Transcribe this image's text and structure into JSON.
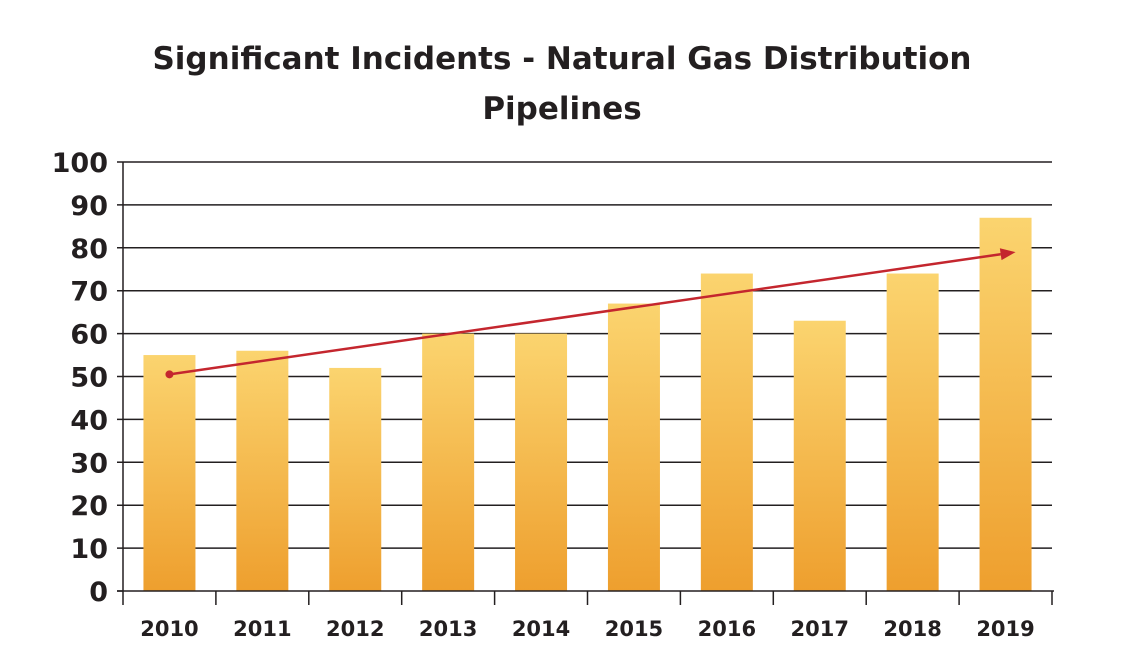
{
  "chart_data": {
    "type": "bar",
    "title_lines": [
      "Significant Incidents - Natural Gas Distribution",
      "Pipelines"
    ],
    "categories": [
      "2010",
      "2011",
      "2012",
      "2013",
      "2014",
      "2015",
      "2016",
      "2017",
      "2018",
      "2019"
    ],
    "values": [
      55,
      56,
      52,
      60,
      60,
      67,
      74,
      63,
      74,
      87
    ],
    "ylim": [
      0,
      100
    ],
    "yticks": [
      0,
      10,
      20,
      30,
      40,
      50,
      60,
      70,
      80,
      90,
      100
    ],
    "grid": true,
    "legend": "none",
    "trend_line": {
      "from": {
        "x": "2010",
        "y": 50.5
      },
      "to": {
        "x": "2019",
        "y": 79
      }
    },
    "colors": {
      "bar_top": "#fbd46f",
      "bar_bottom": "#ee9f2e",
      "trend": "#c4262e",
      "axis": "#231f20",
      "grid": "#231f20"
    }
  }
}
